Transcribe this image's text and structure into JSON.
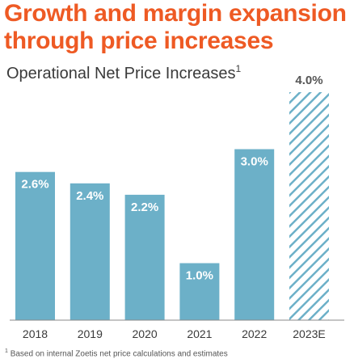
{
  "headline": {
    "line1": "Growth and margin expansion",
    "line2": "through price increases"
  },
  "colors": {
    "headline": "#ee5a24",
    "bar": "#6cb0c8",
    "estimate_stripe": "#6cb0c8",
    "axis": "#8a8a8a",
    "bar_label": "#ffffff",
    "estimate_label": "#555555"
  },
  "chart_data": {
    "type": "bar",
    "title": "Operational Net Price Increases",
    "title_superscript": "1",
    "categories": [
      "2018",
      "2019",
      "2020",
      "2021",
      "2022",
      "2023E"
    ],
    "values": [
      2.6,
      2.4,
      2.2,
      1.0,
      3.0,
      4.0
    ],
    "value_labels": [
      "2.6%",
      "2.4%",
      "2.2%",
      "1.0%",
      "3.0%",
      "4.0%"
    ],
    "estimate_index": 5,
    "ylim": [
      0,
      4.0
    ],
    "xlabel": "",
    "ylabel": "",
    "grid": false
  },
  "footnote": {
    "marker": "1",
    "text": "Based on internal Zoetis net price calculations and estimates"
  }
}
